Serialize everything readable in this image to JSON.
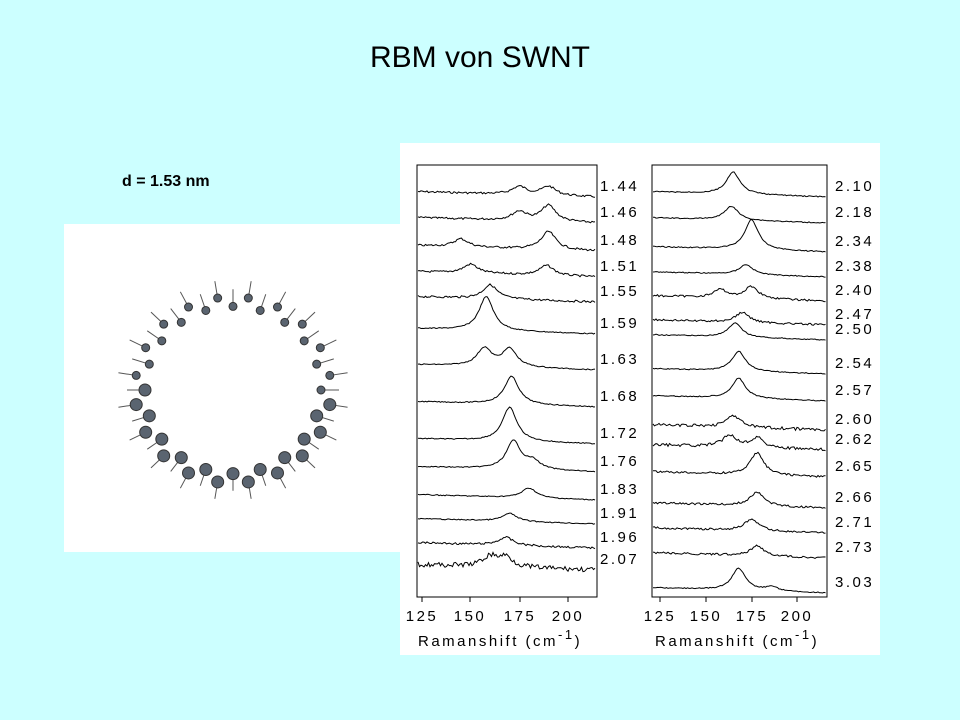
{
  "title": "RBM von SWNT",
  "diameter_label": "d = 1.53 nm",
  "left_panel": {
    "labels": [
      "1.44",
      "1.46",
      "1.48",
      "1.51",
      "1.55",
      "1.59",
      "1.63",
      "1.68",
      "1.72",
      "1.76",
      "1.83",
      "1.91",
      "1.96",
      "2.07"
    ],
    "x_ticks": [
      "125",
      "150",
      "175",
      "200"
    ],
    "axis_label": {
      "text": "Ramanshift (cm",
      "sup": "-1",
      "close": ")"
    }
  },
  "right_panel": {
    "labels": [
      "2.10",
      "2.18",
      "2.34",
      "2.38",
      "2.40",
      "2.47",
      "2.50",
      "2.54",
      "2.57",
      "2.60",
      "2.62",
      "2.65",
      "2.66",
      "2.71",
      "2.73",
      "3.03"
    ],
    "x_ticks": [
      "125",
      "150",
      "175",
      "200"
    ],
    "axis_label": {
      "text": "Ramanshift (cm",
      "sup": "-1",
      "close": ")"
    }
  }
}
